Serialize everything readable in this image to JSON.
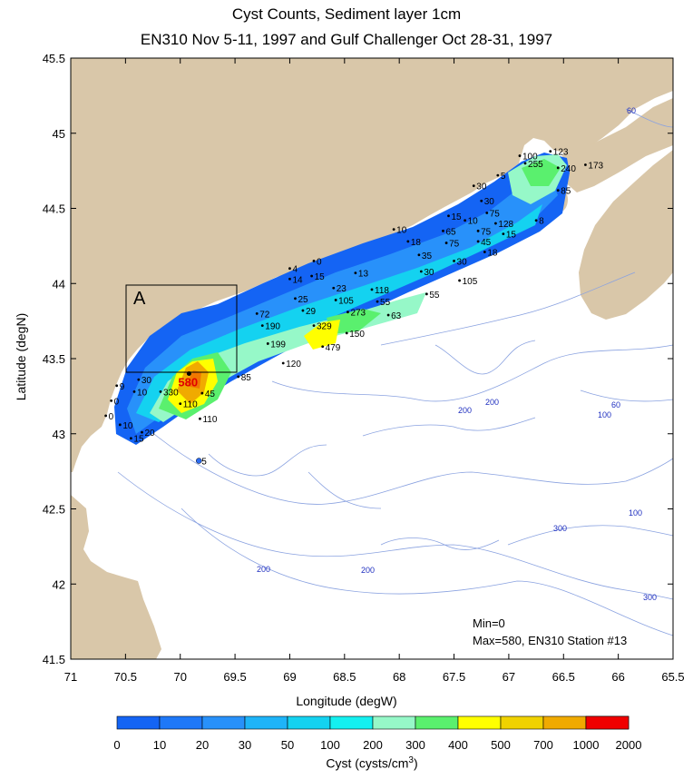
{
  "title_line1": "Cyst Counts, Sediment layer 1cm",
  "title_line2": "EN310 Nov 5-11, 1997 and Gulf Challenger Oct 28-31, 1997",
  "xlabel": "Longitude (degW)",
  "ylabel": "Latitude (degN)",
  "x_ticks": [
    "71",
    "70.5",
    "70",
    "69.5",
    "69",
    "68.5",
    "68",
    "67.5",
    "67",
    "66.5",
    "66",
    "65.5"
  ],
  "y_ticks": [
    "45.5",
    "45",
    "44.5",
    "44",
    "43.5",
    "43",
    "42.5",
    "42",
    "41.5"
  ],
  "region_label": "A",
  "min_note": "Min=0",
  "max_note": "Max=580, EN310 Station #13",
  "colorbar": {
    "label": "Cyst (cysts/cm",
    "label_sup": "3",
    "label_end": ")",
    "ticks": [
      "0",
      "10",
      "20",
      "30",
      "50",
      "100",
      "200",
      "300",
      "400",
      "500",
      "700",
      "1000",
      "2000"
    ],
    "colors": [
      "#1464f4",
      "#1e78f8",
      "#2891fa",
      "#1eb4f8",
      "#14d2f0",
      "#14f0f0",
      "#96f8c8",
      "#5af06e",
      "#ffff00",
      "#f0d200",
      "#f0aa00",
      "#f07800",
      "#f00000"
    ]
  },
  "depth_labels": [
    "60",
    "60",
    "100",
    "100",
    "200",
    "200",
    "200",
    "200",
    "300",
    "300"
  ],
  "stations": [
    {
      "label": "100",
      "lon": 66.9,
      "lat": 44.85
    },
    {
      "label": "123",
      "lon": 66.62,
      "lat": 44.88
    },
    {
      "label": "255",
      "lon": 66.85,
      "lat": 44.8
    },
    {
      "label": "240",
      "lon": 66.55,
      "lat": 44.77
    },
    {
      "label": "173",
      "lon": 66.3,
      "lat": 44.79
    },
    {
      "label": "5",
      "lon": 67.1,
      "lat": 44.72
    },
    {
      "label": "85",
      "lon": 66.55,
      "lat": 44.62
    },
    {
      "label": "30",
      "lon": 67.32,
      "lat": 44.65
    },
    {
      "label": "30",
      "lon": 67.25,
      "lat": 44.55
    },
    {
      "label": "75",
      "lon": 67.2,
      "lat": 44.47
    },
    {
      "label": "128",
      "lon": 67.12,
      "lat": 44.4
    },
    {
      "label": "8",
      "lon": 66.75,
      "lat": 44.42
    },
    {
      "label": "15",
      "lon": 67.55,
      "lat": 44.45
    },
    {
      "label": "10",
      "lon": 67.4,
      "lat": 44.42
    },
    {
      "label": "65",
      "lon": 67.6,
      "lat": 44.35
    },
    {
      "label": "75",
      "lon": 67.28,
      "lat": 44.35
    },
    {
      "label": "15",
      "lon": 67.05,
      "lat": 44.33
    },
    {
      "label": "10",
      "lon": 68.05,
      "lat": 44.36
    },
    {
      "label": "18",
      "lon": 67.92,
      "lat": 44.28
    },
    {
      "label": "75",
      "lon": 67.57,
      "lat": 44.27
    },
    {
      "label": "45",
      "lon": 67.28,
      "lat": 44.28
    },
    {
      "label": "18",
      "lon": 67.22,
      "lat": 44.21
    },
    {
      "label": "35",
      "lon": 67.82,
      "lat": 44.19
    },
    {
      "label": "30",
      "lon": 67.5,
      "lat": 44.15
    },
    {
      "label": "30",
      "lon": 67.8,
      "lat": 44.08
    },
    {
      "label": "105",
      "lon": 67.45,
      "lat": 44.02
    },
    {
      "label": "55",
      "lon": 67.75,
      "lat": 43.93
    },
    {
      "label": "0",
      "lon": 68.78,
      "lat": 44.15
    },
    {
      "label": "4",
      "lon": 69.0,
      "lat": 44.1
    },
    {
      "label": "13",
      "lon": 68.4,
      "lat": 44.07
    },
    {
      "label": "15",
      "lon": 68.8,
      "lat": 44.05
    },
    {
      "label": "14",
      "lon": 69.0,
      "lat": 44.03
    },
    {
      "label": "23",
      "lon": 68.6,
      "lat": 43.97
    },
    {
      "label": "118",
      "lon": 68.25,
      "lat": 43.96
    },
    {
      "label": "25",
      "lon": 68.95,
      "lat": 43.9
    },
    {
      "label": "105",
      "lon": 68.58,
      "lat": 43.89
    },
    {
      "label": "55",
      "lon": 68.2,
      "lat": 43.88
    },
    {
      "label": "29",
      "lon": 68.88,
      "lat": 43.82
    },
    {
      "label": "273",
      "lon": 68.47,
      "lat": 43.81
    },
    {
      "label": "63",
      "lon": 68.1,
      "lat": 43.79
    },
    {
      "label": "72",
      "lon": 69.3,
      "lat": 43.8
    },
    {
      "label": "190",
      "lon": 69.25,
      "lat": 43.72
    },
    {
      "label": "329",
      "lon": 68.78,
      "lat": 43.72
    },
    {
      "label": "150",
      "lon": 68.48,
      "lat": 43.67
    },
    {
      "label": "199",
      "lon": 69.2,
      "lat": 43.6
    },
    {
      "label": "479",
      "lon": 68.7,
      "lat": 43.58
    },
    {
      "label": "120",
      "lon": 69.06,
      "lat": 43.47
    },
    {
      "label": "85",
      "lon": 69.47,
      "lat": 43.38
    },
    {
      "label": "30",
      "lon": 70.38,
      "lat": 43.36
    },
    {
      "label": "10",
      "lon": 70.42,
      "lat": 43.28
    },
    {
      "label": "330",
      "lon": 70.18,
      "lat": 43.28
    },
    {
      "label": "45",
      "lon": 69.8,
      "lat": 43.27
    },
    {
      "label": "110",
      "lon": 70.0,
      "lat": 43.2
    },
    {
      "label": "110",
      "lon": 69.82,
      "lat": 43.1
    },
    {
      "label": "9",
      "lon": 70.58,
      "lat": 43.32
    },
    {
      "label": "0",
      "lon": 70.63,
      "lat": 43.22
    },
    {
      "label": "0",
      "lon": 70.68,
      "lat": 43.12
    },
    {
      "label": "10",
      "lon": 70.55,
      "lat": 43.06
    },
    {
      "label": "20",
      "lon": 70.35,
      "lat": 43.01
    },
    {
      "label": "15",
      "lon": 70.45,
      "lat": 42.97
    },
    {
      "label": "5",
      "lon": 69.83,
      "lat": 42.82
    }
  ],
  "max_station": {
    "label": "580",
    "lon": 69.92,
    "lat": 43.34
  }
}
